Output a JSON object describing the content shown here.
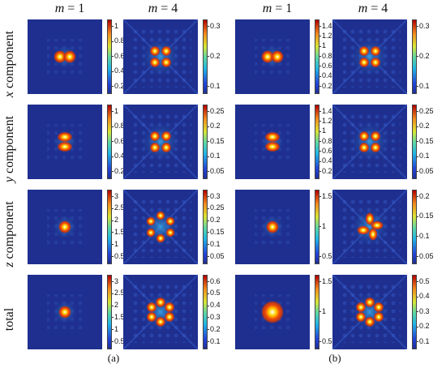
{
  "column_headers": [
    {
      "var": "m",
      "value": "= 1"
    },
    {
      "var": "m",
      "value": "= 4"
    },
    {
      "var": "m",
      "value": "= 1"
    },
    {
      "var": "m",
      "value": "= 4"
    }
  ],
  "row_labels": [
    {
      "var": "x",
      "text": " component"
    },
    {
      "var": "y",
      "text": " component"
    },
    {
      "var": "z",
      "text": " component"
    },
    {
      "var": "",
      "text": "total"
    }
  ],
  "panel_labels": [
    "(a)",
    "(b)"
  ],
  "colors": {
    "background": "#1e2f8f",
    "low": "#1f2c8b",
    "high": "#b30000"
  },
  "colorbars": [
    [
      [
        "1",
        "0.8",
        "0.6",
        "0.4",
        "0.2"
      ],
      [
        "0.3",
        "0.2",
        "0.1"
      ],
      [
        "1.4",
        "1.2",
        "1",
        "0.8",
        "0.6",
        "0.4",
        "0.2"
      ],
      [
        "0.3",
        "0.2",
        "0.1"
      ]
    ],
    [
      [
        "1",
        "0.8",
        "0.6",
        "0.4",
        "0.2"
      ],
      [
        "0.25",
        "0.2",
        "0.15",
        "0.1",
        "0.05"
      ],
      [
        "1.4",
        "1.2",
        "1",
        "0.8",
        "0.6",
        "0.4",
        "0.2"
      ],
      [
        "0.25",
        "0.2",
        "0.15",
        "0.1",
        "0.05"
      ]
    ],
    [
      [
        "3",
        "2.5",
        "2",
        "1.5",
        "1",
        "0.5"
      ],
      [
        "0.3",
        "0.25",
        "0.2",
        "0.15",
        "0.1",
        "0.05"
      ],
      [
        "1.5",
        "1",
        "0.5"
      ],
      [
        "0.2",
        "0.15",
        "0.1",
        "0.05"
      ]
    ],
    [
      [
        "3",
        "2.5",
        "2",
        "1.5",
        "1",
        "0.5"
      ],
      [
        "0.6",
        "0.5",
        "0.4",
        "0.3",
        "0.2",
        "0.1"
      ],
      [
        "1.5",
        "1",
        "0.5"
      ],
      [
        "0.5",
        "0.4",
        "0.3",
        "0.2",
        "0.1"
      ]
    ]
  ]
}
